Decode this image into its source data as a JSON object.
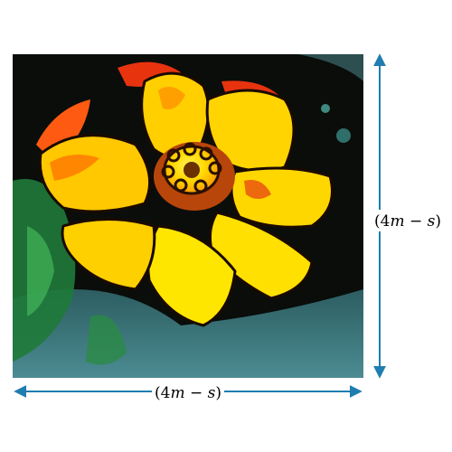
{
  "figure": {
    "image_subject": "yellow-orange flower photo with posterized filter",
    "width_label": {
      "open": "(4",
      "var1": "m",
      "minus": " − ",
      "var2": "s",
      "close": ")"
    },
    "height_label": {
      "open": "(4",
      "var1": "m",
      "minus": " − ",
      "var2": "s",
      "close": ")"
    },
    "colors": {
      "arrow": "#1f7db0",
      "petal_yellow": "#ffe000",
      "petal_orange": "#ff8a00",
      "accent_red": "#e8330f",
      "background_dark": "#0a0d0a",
      "foliage_green": "#1f7a3a",
      "ground_teal": "#3f7f86"
    }
  }
}
